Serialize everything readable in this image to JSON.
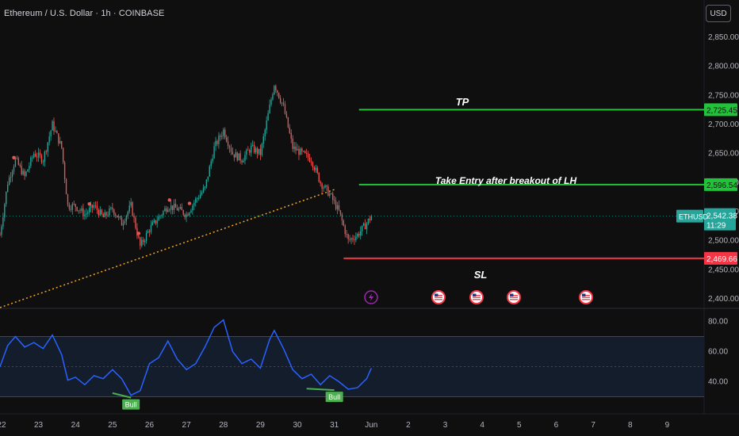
{
  "header": {
    "title": "Ethereum / U.S. Dollar · 1h · COINBASE",
    "currency_button": "USD"
  },
  "annotations": {
    "tp": "TP",
    "entry": "Take Entry after breakout of LH",
    "sl": "SL"
  },
  "price_tags": {
    "tp": "2,725.45",
    "entry": "2,596.54",
    "sl": "2,469.66",
    "symbol": "ETHUSD",
    "last": "2,542.38",
    "countdown": "11:29"
  },
  "bull_label": "Bull",
  "colors": {
    "background": "#0f0f10",
    "up": "#26a69a",
    "down": "#ef5350",
    "tp_line": "#22c33a",
    "sl_line": "#f23645",
    "trendline": "#f5a623",
    "rsi_line": "#2962ff",
    "rsi_band": "#131d2c",
    "bull": "#4caf50",
    "event_icon": "#f23645",
    "bolt_icon": "#9c27b0"
  },
  "icons": [
    "lightning-icon",
    "us-flag-icon",
    "us-flag-icon",
    "us-flag-icon",
    "us-flag-icon"
  ],
  "chart_data": [
    {
      "type": "candlestick",
      "title": "Ethereum / U.S. Dollar · 1h · COINBASE",
      "ylim": [
        2385,
        2880
      ],
      "y_ticks": [
        2400,
        2450,
        2500,
        2550,
        2600,
        2650,
        2700,
        2750,
        2800,
        2850
      ],
      "y_tick_labels": [
        "2,400.00",
        "2,450.00",
        "2,500.00",
        "2,550.00",
        "2,600.00",
        "2,650.00",
        "2,700.00",
        "2,750.00",
        "2,800.00",
        "2,850.00"
      ],
      "x_tick_labels": [
        "22",
        "23",
        "24",
        "25",
        "26",
        "27",
        "28",
        "29",
        "30",
        "31",
        "Jun",
        "2",
        "3",
        "4",
        "5",
        "6",
        "7",
        "8",
        "9"
      ],
      "x_ticks": [
        "2025-05-22",
        "2025-05-23",
        "2025-05-24",
        "2025-05-25",
        "2025-05-26",
        "2025-05-27",
        "2025-05-28",
        "2025-05-29",
        "2025-05-30",
        "2025-05-31",
        "2025-06-01",
        "2025-06-02",
        "2025-06-03",
        "2025-06-04",
        "2025-06-05",
        "2025-06-06",
        "2025-06-07",
        "2025-06-08",
        "2025-06-09"
      ],
      "xlim": [
        "2025-05-21 23:00",
        "2025-06-10 00:00"
      ],
      "close_path": [
        {
          "x": "2025-05-21 23:00",
          "y": 2510
        },
        {
          "x": "2025-05-22 04:00",
          "y": 2600
        },
        {
          "x": "2025-05-22 09:00",
          "y": 2640
        },
        {
          "x": "2025-05-22 15:00",
          "y": 2610
        },
        {
          "x": "2025-05-22 21:00",
          "y": 2650
        },
        {
          "x": "2025-05-23 03:00",
          "y": 2640
        },
        {
          "x": "2025-05-23 09:00",
          "y": 2700
        },
        {
          "x": "2025-05-23 15:00",
          "y": 2660
        },
        {
          "x": "2025-05-23 19:00",
          "y": 2560
        },
        {
          "x": "2025-05-24 00:00",
          "y": 2560
        },
        {
          "x": "2025-05-24 06:00",
          "y": 2545
        },
        {
          "x": "2025-05-24 12:00",
          "y": 2560
        },
        {
          "x": "2025-05-24 18:00",
          "y": 2540
        },
        {
          "x": "2025-05-25 00:00",
          "y": 2555
        },
        {
          "x": "2025-05-25 06:00",
          "y": 2530
        },
        {
          "x": "2025-05-25 12:00",
          "y": 2560
        },
        {
          "x": "2025-05-25 18:00",
          "y": 2490
        },
        {
          "x": "2025-05-26 00:00",
          "y": 2520
        },
        {
          "x": "2025-05-26 06:00",
          "y": 2540
        },
        {
          "x": "2025-05-26 12:00",
          "y": 2560
        },
        {
          "x": "2025-05-26 18:00",
          "y": 2555
        },
        {
          "x": "2025-05-27 00:00",
          "y": 2545
        },
        {
          "x": "2025-05-27 06:00",
          "y": 2570
        },
        {
          "x": "2025-05-27 12:00",
          "y": 2590
        },
        {
          "x": "2025-05-27 18:00",
          "y": 2660
        },
        {
          "x": "2025-05-28 00:00",
          "y": 2690
        },
        {
          "x": "2025-05-28 06:00",
          "y": 2650
        },
        {
          "x": "2025-05-28 12:00",
          "y": 2640
        },
        {
          "x": "2025-05-28 18:00",
          "y": 2660
        },
        {
          "x": "2025-05-29 00:00",
          "y": 2650
        },
        {
          "x": "2025-05-29 06:00",
          "y": 2730
        },
        {
          "x": "2025-05-29 09:00",
          "y": 2770
        },
        {
          "x": "2025-05-29 15:00",
          "y": 2730
        },
        {
          "x": "2025-05-29 21:00",
          "y": 2660
        },
        {
          "x": "2025-05-30 03:00",
          "y": 2650
        },
        {
          "x": "2025-05-30 09:00",
          "y": 2640
        },
        {
          "x": "2025-05-30 15:00",
          "y": 2600
        },
        {
          "x": "2025-05-30 21:00",
          "y": 2580
        },
        {
          "x": "2025-05-31 03:00",
          "y": 2550
        },
        {
          "x": "2025-05-31 09:00",
          "y": 2500
        },
        {
          "x": "2025-05-31 15:00",
          "y": 2510
        },
        {
          "x": "2025-05-31 21:00",
          "y": 2530
        },
        {
          "x": "2025-06-01 00:00",
          "y": 2542.38
        }
      ],
      "trendline": [
        {
          "x": "2025-05-21 23:00",
          "y": 2385
        },
        {
          "x": "2025-05-31 00:00",
          "y": 2588
        }
      ],
      "levels": [
        {
          "name": "TP",
          "y": 2725.45,
          "from": "2025-05-31 16:00"
        },
        {
          "name": "Take Entry after breakout of LH",
          "y": 2596.54,
          "from": "2025-05-31 16:00"
        },
        {
          "name": "SL",
          "y": 2469.66,
          "from": "2025-05-31 06:00"
        }
      ],
      "last_price": 2542.38
    },
    {
      "type": "line",
      "title": "",
      "ylim": [
        25,
        85
      ],
      "y_ticks": [
        40,
        60,
        80
      ],
      "y_tick_labels": [
        "40.00",
        "60.00",
        "80.00"
      ],
      "band": [
        30,
        70
      ],
      "midline": 50,
      "series": [
        {
          "values": [
            {
              "x": "2025-05-21 23:00",
              "y": 50
            },
            {
              "x": "2025-05-22 04:00",
              "y": 64
            },
            {
              "x": "2025-05-22 09:00",
              "y": 70
            },
            {
              "x": "2025-05-22 15:00",
              "y": 63
            },
            {
              "x": "2025-05-22 21:00",
              "y": 66
            },
            {
              "x": "2025-05-23 03:00",
              "y": 62
            },
            {
              "x": "2025-05-23 09:00",
              "y": 71
            },
            {
              "x": "2025-05-23 15:00",
              "y": 58
            },
            {
              "x": "2025-05-23 19:00",
              "y": 41
            },
            {
              "x": "2025-05-24 00:00",
              "y": 43
            },
            {
              "x": "2025-05-24 06:00",
              "y": 38
            },
            {
              "x": "2025-05-24 12:00",
              "y": 44
            },
            {
              "x": "2025-05-24 18:00",
              "y": 42
            },
            {
              "x": "2025-05-25 00:00",
              "y": 48
            },
            {
              "x": "2025-05-25 06:00",
              "y": 42
            },
            {
              "x": "2025-05-25 12:00",
              "y": 31
            },
            {
              "x": "2025-05-25 18:00",
              "y": 34
            },
            {
              "x": "2025-05-26 00:00",
              "y": 52
            },
            {
              "x": "2025-05-26 06:00",
              "y": 56
            },
            {
              "x": "2025-05-26 12:00",
              "y": 67
            },
            {
              "x": "2025-05-26 18:00",
              "y": 55
            },
            {
              "x": "2025-05-27 00:00",
              "y": 48
            },
            {
              "x": "2025-05-27 06:00",
              "y": 52
            },
            {
              "x": "2025-05-27 12:00",
              "y": 63
            },
            {
              "x": "2025-05-27 18:00",
              "y": 76
            },
            {
              "x": "2025-05-28 00:00",
              "y": 81
            },
            {
              "x": "2025-05-28 06:00",
              "y": 60
            },
            {
              "x": "2025-05-28 12:00",
              "y": 52
            },
            {
              "x": "2025-05-28 18:00",
              "y": 55
            },
            {
              "x": "2025-05-29 00:00",
              "y": 49
            },
            {
              "x": "2025-05-29 06:00",
              "y": 68
            },
            {
              "x": "2025-05-29 09:00",
              "y": 74
            },
            {
              "x": "2025-05-29 15:00",
              "y": 62
            },
            {
              "x": "2025-05-29 21:00",
              "y": 48
            },
            {
              "x": "2025-05-30 03:00",
              "y": 42
            },
            {
              "x": "2025-05-30 09:00",
              "y": 45
            },
            {
              "x": "2025-05-30 15:00",
              "y": 38
            },
            {
              "x": "2025-05-30 21:00",
              "y": 44
            },
            {
              "x": "2025-05-31 03:00",
              "y": 40
            },
            {
              "x": "2025-05-31 09:00",
              "y": 35
            },
            {
              "x": "2025-05-31 15:00",
              "y": 36
            },
            {
              "x": "2025-05-31 21:00",
              "y": 42
            },
            {
              "x": "2025-06-01 00:00",
              "y": 49
            }
          ]
        }
      ],
      "bull_divergences": [
        {
          "from": {
            "x": "2025-05-25 00:00",
            "y": 34
          },
          "to": {
            "x": "2025-05-25 12:00",
            "y": 31
          }
        },
        {
          "from": {
            "x": "2025-05-30 06:00",
            "y": 37
          },
          "to": {
            "x": "2025-05-31 00:00",
            "y": 36
          }
        }
      ]
    }
  ]
}
